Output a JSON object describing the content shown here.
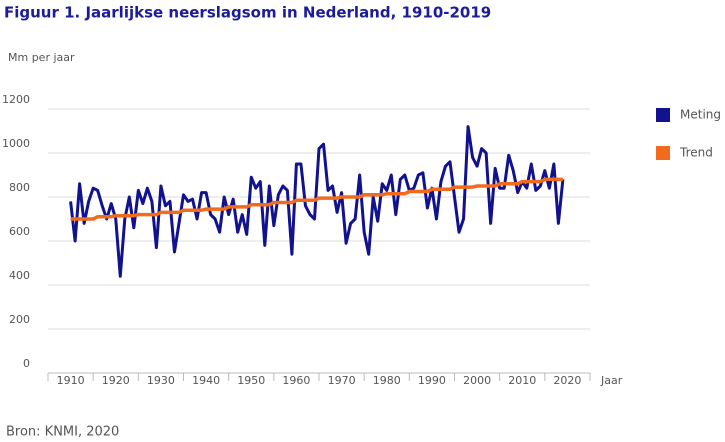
{
  "chart_data": {
    "type": "line",
    "title": "Figuur 1. Jaarlijkse neerslagsom in Nederland, 1910-2019",
    "y_label": "Mm per jaar",
    "x_label": "Jaar",
    "source": "Bron: KNMI, 2020",
    "x": [
      1910,
      1911,
      1912,
      1913,
      1914,
      1915,
      1916,
      1917,
      1918,
      1919,
      1920,
      1921,
      1922,
      1923,
      1924,
      1925,
      1926,
      1927,
      1928,
      1929,
      1930,
      1931,
      1932,
      1933,
      1934,
      1935,
      1936,
      1937,
      1938,
      1939,
      1940,
      1941,
      1942,
      1943,
      1944,
      1945,
      1946,
      1947,
      1948,
      1949,
      1950,
      1951,
      1952,
      1953,
      1954,
      1955,
      1956,
      1957,
      1958,
      1959,
      1960,
      1961,
      1962,
      1963,
      1964,
      1965,
      1966,
      1967,
      1968,
      1969,
      1970,
      1971,
      1972,
      1973,
      1974,
      1975,
      1976,
      1977,
      1978,
      1979,
      1980,
      1981,
      1982,
      1983,
      1984,
      1985,
      1986,
      1987,
      1988,
      1989,
      1990,
      1991,
      1992,
      1993,
      1994,
      1995,
      1996,
      1997,
      1998,
      1999,
      2000,
      2001,
      2002,
      2003,
      2004,
      2005,
      2006,
      2007,
      2008,
      2009,
      2010,
      2011,
      2012,
      2013,
      2014,
      2015,
      2016,
      2017,
      2018,
      2019
    ],
    "series": [
      {
        "name": "Meting",
        "color": "#12128f",
        "values": [
          780,
          600,
          860,
          680,
          780,
          840,
          830,
          760,
          700,
          770,
          700,
          440,
          700,
          800,
          660,
          830,
          770,
          840,
          780,
          570,
          850,
          760,
          780,
          550,
          680,
          810,
          780,
          790,
          700,
          820,
          820,
          720,
          700,
          640,
          800,
          720,
          790,
          640,
          720,
          630,
          890,
          840,
          870,
          580,
          850,
          670,
          810,
          850,
          830,
          540,
          950,
          950,
          760,
          720,
          700,
          1020,
          1040,
          830,
          850,
          730,
          820,
          590,
          680,
          700,
          900,
          640,
          540,
          800,
          690,
          860,
          830,
          900,
          720,
          880,
          900,
          830,
          840,
          900,
          910,
          750,
          840,
          700,
          870,
          940,
          960,
          800,
          640,
          700,
          1120,
          980,
          940,
          1020,
          1000,
          680,
          930,
          840,
          840,
          990,
          920,
          820,
          870,
          840,
          950,
          830,
          850,
          920,
          840,
          950,
          680,
          880
        ]
      },
      {
        "name": "Trend",
        "color": "#f26b1d",
        "values": [
          700,
          700,
          700,
          700,
          700,
          700,
          710,
          710,
          710,
          710,
          715,
          715,
          715,
          715,
          715,
          720,
          720,
          720,
          720,
          720,
          730,
          730,
          730,
          730,
          730,
          740,
          740,
          740,
          740,
          740,
          745,
          745,
          745,
          745,
          745,
          755,
          755,
          755,
          755,
          755,
          765,
          765,
          765,
          765,
          765,
          775,
          775,
          775,
          775,
          775,
          785,
          785,
          785,
          785,
          785,
          795,
          795,
          795,
          795,
          795,
          800,
          800,
          800,
          800,
          800,
          810,
          810,
          810,
          810,
          810,
          815,
          815,
          815,
          815,
          815,
          825,
          825,
          825,
          825,
          825,
          835,
          835,
          835,
          835,
          835,
          845,
          845,
          845,
          845,
          845,
          850,
          850,
          850,
          850,
          850,
          860,
          860,
          860,
          860,
          860,
          870,
          870,
          870,
          870,
          870,
          880,
          880,
          880,
          880,
          880
        ]
      }
    ],
    "xlim": [
      1905,
      2025
    ],
    "xticks": [
      1910,
      1920,
      1930,
      1940,
      1950,
      1960,
      1970,
      1980,
      1990,
      2000,
      2010,
      2020
    ],
    "ylim": [
      0,
      1200
    ],
    "yticks": [
      0,
      200,
      400,
      600,
      800,
      1000,
      1200
    ],
    "grid": true,
    "legend": "right"
  }
}
